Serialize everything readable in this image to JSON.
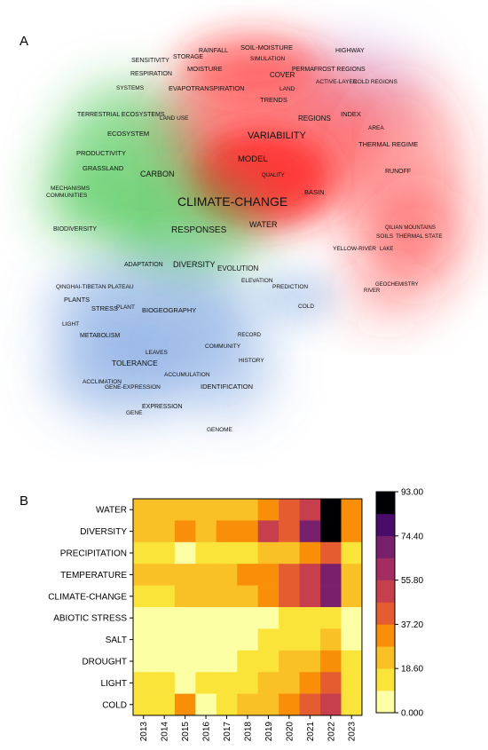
{
  "panels": {
    "a_label": "A",
    "b_label": "B"
  },
  "chart_data": [
    {
      "type": "density-map",
      "panel": "A",
      "colors": {
        "red": "#ff2a2a",
        "green": "#2fbf3a",
        "blue": "#4f86d6",
        "purple": "#c9a6e8"
      },
      "terms": [
        {
          "label": "SENSITIVITY"
        },
        {
          "label": "STORAGE"
        },
        {
          "label": "RAINFALL"
        },
        {
          "label": "SOIL-MOISTURE"
        },
        {
          "label": "SIMULATION"
        },
        {
          "label": "HIGHWAY"
        },
        {
          "label": "RESPIRATION"
        },
        {
          "label": "MOISTURE"
        },
        {
          "label": "COVER"
        },
        {
          "label": "PERMAFROST REGIONS"
        },
        {
          "label": "ACTIVE-LAYER"
        },
        {
          "label": "COLD REGIONS"
        },
        {
          "label": "SYSTEMS"
        },
        {
          "label": "EVAPOTRANSPIRATION"
        },
        {
          "label": "LAND"
        },
        {
          "label": "TRENDS"
        },
        {
          "label": "TERRESTRIAL ECOSYSTEMS"
        },
        {
          "label": "LAND USE"
        },
        {
          "label": "REGIONS"
        },
        {
          "label": "INDEX"
        },
        {
          "label": "AREA"
        },
        {
          "label": "ECOSYSTEM"
        },
        {
          "label": "VARIABILITY"
        },
        {
          "label": "THERMAL REGIME"
        },
        {
          "label": "PRODUCTIVITY"
        },
        {
          "label": "MODEL"
        },
        {
          "label": "GRASSLAND"
        },
        {
          "label": "CARBON"
        },
        {
          "label": "QUALITY"
        },
        {
          "label": "RUNOFF"
        },
        {
          "label": "MECHANISMS"
        },
        {
          "label": "COMMUNITIES"
        },
        {
          "label": "BASIN"
        },
        {
          "label": "CLIMATE-CHANGE"
        },
        {
          "label": "QILIAN MOUNTAINS"
        },
        {
          "label": "BIODIVERSITY"
        },
        {
          "label": "RESPONSES"
        },
        {
          "label": "WATER"
        },
        {
          "label": "SOILS"
        },
        {
          "label": "THERMAL STATE"
        },
        {
          "label": "YELLOW-RIVER"
        },
        {
          "label": "LAKE"
        },
        {
          "label": "ADAPTATION"
        },
        {
          "label": "DIVERSITY"
        },
        {
          "label": "EVOLUTION"
        },
        {
          "label": "ELEVATION"
        },
        {
          "label": "QINGHAI-TIBETAN PLATEAU"
        },
        {
          "label": "PREDICTION"
        },
        {
          "label": "GEOCHEMISTRY"
        },
        {
          "label": "RIVER"
        },
        {
          "label": "PLANTS"
        },
        {
          "label": "STRESS"
        },
        {
          "label": "PLANT"
        },
        {
          "label": "BIOGEOGRAPHY"
        },
        {
          "label": "COLD"
        },
        {
          "label": "LIGHT"
        },
        {
          "label": "METABOLISM"
        },
        {
          "label": "RECORD"
        },
        {
          "label": "COMMUNITY"
        },
        {
          "label": "LEAVES"
        },
        {
          "label": "TOLERANCE"
        },
        {
          "label": "HISTORY"
        },
        {
          "label": "ACCUMULATION"
        },
        {
          "label": "ACCLIMATION"
        },
        {
          "label": "GENE-EXPRESSION"
        },
        {
          "label": "IDENTIFICATION"
        },
        {
          "label": "EXPRESSION"
        },
        {
          "label": "GENE"
        },
        {
          "label": "GENOME"
        }
      ]
    },
    {
      "type": "heatmap",
      "panel": "B",
      "x": [
        "2013",
        "2014",
        "2015",
        "2016",
        "2017",
        "2018",
        "2019",
        "2020",
        "2021",
        "2022",
        "2023"
      ],
      "y": [
        "WATER",
        "DIVERSITY",
        "PRECIPITATION",
        "TEMPERATURE",
        "CLIMATE-CHANGE",
        "ABIOTIC STRESS",
        "SALT",
        "DROUGHT",
        "LIGHT",
        "COLD"
      ],
      "values": [
        [
          26,
          23,
          27,
          25,
          23,
          27,
          28,
          45,
          55,
          84,
          30
        ],
        [
          22,
          26,
          29,
          25,
          30,
          34,
          49,
          45,
          70,
          93,
          36
        ],
        [
          11,
          12,
          5,
          11,
          13,
          11,
          22,
          26,
          28,
          45,
          17
        ],
        [
          20,
          23,
          27,
          26,
          22,
          30,
          36,
          45,
          52,
          68,
          25
        ],
        [
          17,
          18,
          20,
          20,
          20,
          27,
          33,
          42,
          49,
          66,
          22
        ],
        [
          7,
          7,
          7,
          7,
          7,
          7,
          9,
          11,
          13,
          18,
          6
        ],
        [
          6,
          8,
          6,
          9,
          4,
          8,
          11,
          12,
          17,
          22,
          8
        ],
        [
          5,
          5,
          5,
          7,
          9,
          11,
          14,
          20,
          23,
          35,
          13
        ],
        [
          10,
          11,
          9,
          14,
          14,
          14,
          22,
          26,
          35,
          39,
          14
        ],
        [
          12,
          12,
          28,
          9,
          15,
          21,
          25,
          33,
          44,
          51,
          13
        ]
      ],
      "colorbar": {
        "min": 0,
        "max": 93,
        "ticks": [
          "0.000",
          "18.60",
          "37.20",
          "55.80",
          "74.40",
          "93.00"
        ]
      },
      "colors": [
        "#fcffa4",
        "#fbe43a",
        "#fac127",
        "#f98e09",
        "#e55c30",
        "#c73e4c",
        "#a32c61",
        "#78206c",
        "#4a0c6b",
        "#000004"
      ]
    }
  ]
}
